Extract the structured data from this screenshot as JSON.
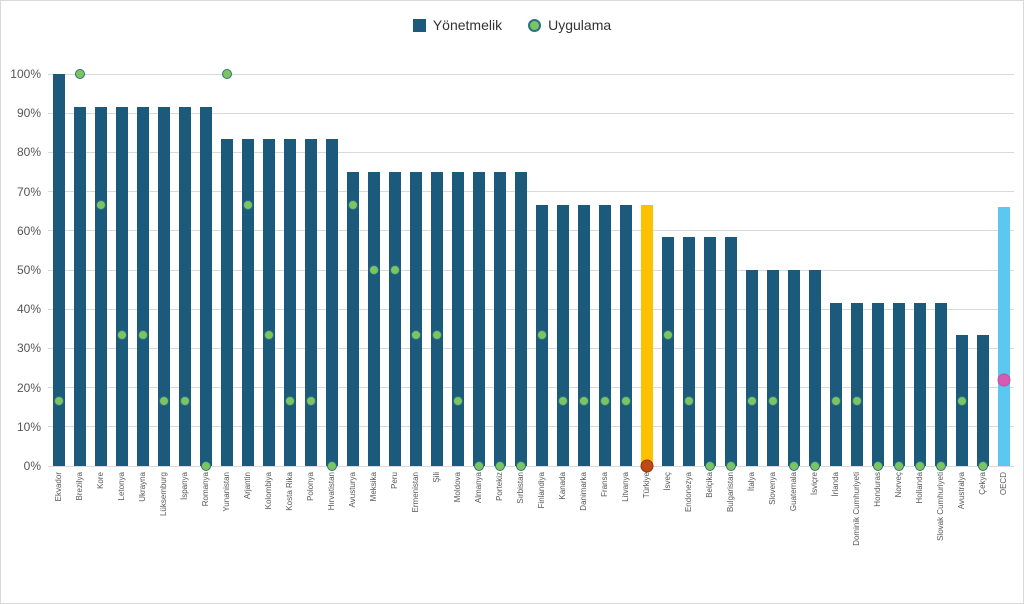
{
  "legend": {
    "items": [
      {
        "label": "Yönetmelik",
        "marker": "square",
        "color": "#1b5a7b"
      },
      {
        "label": "Uygulama",
        "marker": "circle",
        "color": "#7cc55e",
        "border": "#2b7087"
      }
    ]
  },
  "chart_data": {
    "type": "bar",
    "title": "",
    "xlabel": "",
    "ylabel": "",
    "ylim": [
      0,
      100
    ],
    "grid": true,
    "legend_position": "top-center",
    "yticks": [
      "100%",
      "90%",
      "80%",
      "70%",
      "60%",
      "50%",
      "40%",
      "30%",
      "20%",
      "10%",
      "0%"
    ],
    "categories": [
      "Ekvador",
      "Brezilya",
      "Kore",
      "Letonya",
      "Ukrayna",
      "Lüksemburg",
      "İspanya",
      "Romanya",
      "Yunanistan",
      "Arjantin",
      "Kolombiya",
      "Kosta Rika",
      "Polonya",
      "Hırvatistan",
      "Avusturya",
      "Meksika",
      "Peru",
      "Ermenistan",
      "Şili",
      "Moldova",
      "Almanya",
      "Portekiz",
      "Sırbistan",
      "Finlandiya",
      "Kanada",
      "Danimarka",
      "Fransa",
      "Litvanya",
      "Türkiye",
      "İsveç",
      "Endonezya",
      "Belçika",
      "Bulgaristan",
      "İtalya",
      "Slovenya",
      "Guatemala",
      "İsviçre",
      "İrlanda",
      "Dominik Cumhuriyeti",
      "Honduras",
      "Norveç",
      "Hollanda",
      "Slovak Cumhuriyeti",
      "Avustralya",
      "Çekya",
      "OECD"
    ],
    "series": [
      {
        "name": "Yönetmelik",
        "type": "bar",
        "values": [
          100,
          91.7,
          91.7,
          91.7,
          91.7,
          91.7,
          91.7,
          91.7,
          83.3,
          83.3,
          83.3,
          83.3,
          83.3,
          83.3,
          75,
          75,
          75,
          75,
          75,
          75,
          75,
          75,
          75,
          66.7,
          66.7,
          66.7,
          66.7,
          66.7,
          66.7,
          58.3,
          58.3,
          58.3,
          58.3,
          50,
          50,
          50,
          50,
          41.7,
          41.7,
          41.7,
          41.7,
          41.7,
          41.7,
          33.3,
          33.3,
          66
        ]
      },
      {
        "name": "Uygulama",
        "type": "scatter",
        "values": [
          16.7,
          100,
          66.7,
          33.3,
          33.3,
          16.7,
          16.7,
          0,
          100,
          66.7,
          33.3,
          16.7,
          16.7,
          0,
          66.7,
          50,
          50,
          33.3,
          33.3,
          16.7,
          0,
          0,
          0,
          33.3,
          16.7,
          16.7,
          16.7,
          16.7,
          0,
          33.3,
          16.7,
          0,
          0,
          16.7,
          16.7,
          0,
          0,
          16.7,
          16.7,
          0,
          0,
          0,
          0,
          16.7,
          0,
          22
        ]
      }
    ],
    "default_style": {
      "bar": "#1b5a7b",
      "dot": "#7cc55e",
      "dot_border": "#2b7087"
    },
    "point_styles": {
      "Türkiye": {
        "bar": "#ffc000",
        "dot": "#be4a14",
        "dot_border": "#93350a"
      },
      "OECD": {
        "bar": "#5bc8f0",
        "dot": "#d75bb1",
        "dot_border": "#c94da4"
      }
    },
    "colors": {
      "gridline": "#d9d9d9",
      "axis_text": "#555555",
      "label_text": "#595959"
    }
  }
}
